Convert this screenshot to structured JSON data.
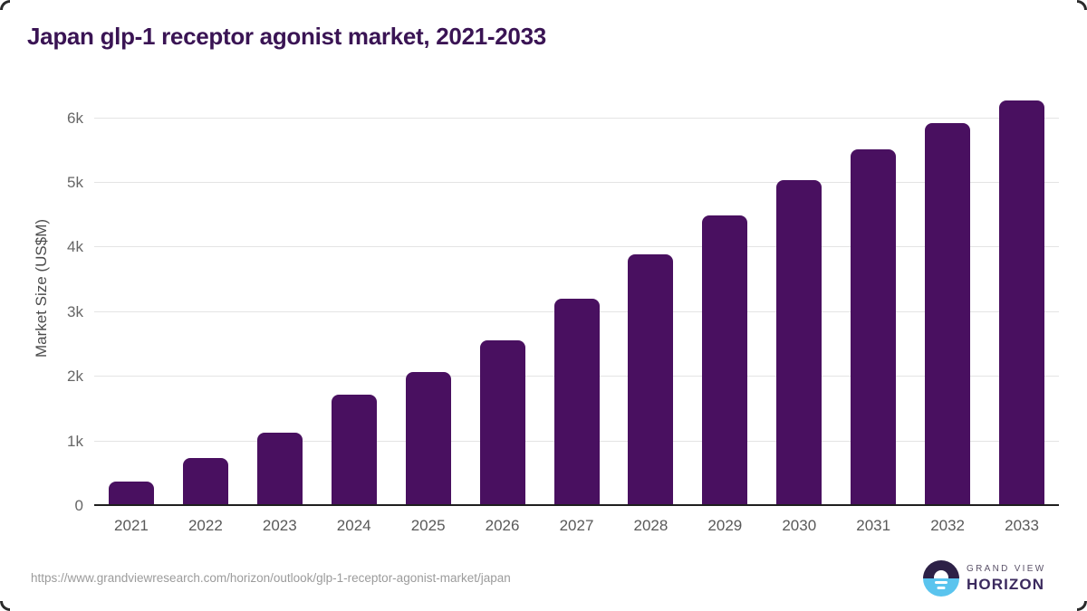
{
  "title": "Japan glp-1 receptor agonist market, 2021-2033",
  "chart_data": {
    "type": "bar",
    "title": "Japan glp-1 receptor agonist market, 2021-2033",
    "categories": [
      "2021",
      "2022",
      "2023",
      "2024",
      "2025",
      "2026",
      "2027",
      "2028",
      "2029",
      "2030",
      "2031",
      "2032",
      "2033"
    ],
    "values": [
      350,
      720,
      1100,
      1700,
      2050,
      2540,
      3180,
      3860,
      4470,
      5010,
      5490,
      5900,
      6250
    ],
    "xlabel": "",
    "ylabel": "Market Size (US$M)",
    "ylim": [
      0,
      6400
    ],
    "yticks": [
      {
        "value": 0,
        "label": "0"
      },
      {
        "value": 1000,
        "label": "1k"
      },
      {
        "value": 2000,
        "label": "2k"
      },
      {
        "value": 3000,
        "label": "3k"
      },
      {
        "value": 4000,
        "label": "4k"
      },
      {
        "value": 5000,
        "label": "5k"
      },
      {
        "value": 6000,
        "label": "6k"
      }
    ],
    "grid": "horizontal",
    "legend": "none",
    "bar_color": "#491060"
  },
  "footer": {
    "source_url": "https://www.grandviewresearch.com/horizon/outlook/glp-1-receptor-agonist-market/japan",
    "logo": {
      "top_text": "GRAND VIEW",
      "bottom_text": "HORIZON"
    }
  },
  "colors": {
    "bar": "#491060",
    "title": "#3a1454",
    "gridline": "#e4e4e4",
    "axis_line": "#1f1f1f",
    "tick_text": "#666666",
    "logo_dark": "#2d2147",
    "logo_blue": "#5ac4ee"
  }
}
